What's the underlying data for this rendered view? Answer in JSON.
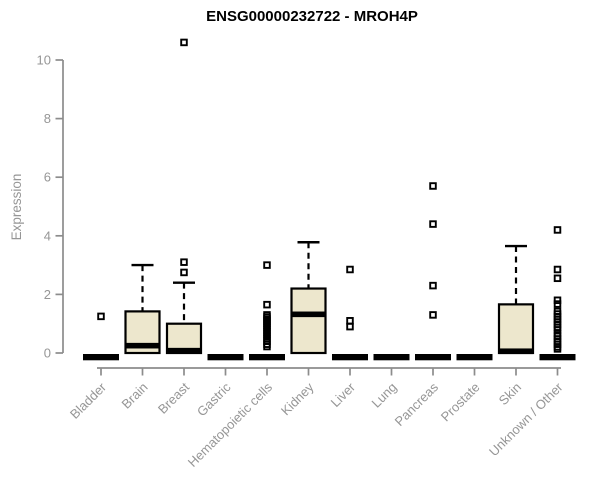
{
  "chart_data": {
    "type": "boxplot",
    "title": "ENSG00000232722 - MROH4P",
    "xlabel": "",
    "ylabel": "Expression",
    "ylim": [
      0,
      10.7
    ],
    "yticks": [
      0,
      2,
      4,
      6,
      8,
      10
    ],
    "grid": false,
    "legend": "none",
    "colors": {
      "box_fill": "#EDE7CD",
      "box_stroke": "#000000",
      "median": "#000000",
      "whisker": "#000000",
      "outlier_stroke": "#000000",
      "axis": "#8C8C8C",
      "axis_text": "#969696",
      "title": "#000000",
      "background": "#FFFFFF"
    },
    "categories": [
      {
        "label": "Bladder",
        "q1": 0,
        "median": 0,
        "q3": 0,
        "whisker_low": 0,
        "whisker_high": 0,
        "outliers": [
          1.25
        ]
      },
      {
        "label": "Brain",
        "q1": 0,
        "median": 0.25,
        "q3": 1.42,
        "whisker_low": 0,
        "whisker_high": 3.0,
        "outliers": []
      },
      {
        "label": "Breast",
        "q1": 0,
        "median": 0.08,
        "q3": 1.0,
        "whisker_low": 0,
        "whisker_high": 2.4,
        "outliers": [
          2.75,
          3.1,
          10.6
        ]
      },
      {
        "label": "Gastric",
        "q1": 0,
        "median": 0,
        "q3": 0,
        "whisker_low": 0,
        "whisker_high": 0,
        "outliers": []
      },
      {
        "label": "Hematopoietic cells",
        "q1": 0,
        "median": 0,
        "q3": 0,
        "whisker_low": 0,
        "whisker_high": 0,
        "outliers": [
          3.0,
          1.65,
          1.3,
          1.23,
          1.16,
          1.09,
          1.02,
          0.95,
          0.88,
          0.8,
          0.72,
          0.64,
          0.56,
          0.48,
          0.4,
          0.3,
          0.22
        ]
      },
      {
        "label": "Kidney",
        "q1": 0,
        "median": 1.32,
        "q3": 2.2,
        "whisker_low": 0,
        "whisker_high": 3.78,
        "outliers": []
      },
      {
        "label": "Liver",
        "q1": 0,
        "median": 0,
        "q3": 0,
        "whisker_low": 0,
        "whisker_high": 0,
        "outliers": [
          2.85,
          1.1,
          0.9
        ]
      },
      {
        "label": "Lung",
        "q1": 0,
        "median": 0,
        "q3": 0,
        "whisker_low": 0,
        "whisker_high": 0,
        "outliers": []
      },
      {
        "label": "Pancreas",
        "q1": 0,
        "median": 0,
        "q3": 0,
        "whisker_low": 0,
        "whisker_high": 0,
        "outliers": [
          5.7,
          4.4,
          2.3,
          1.3
        ]
      },
      {
        "label": "Prostate",
        "q1": 0,
        "median": 0,
        "q3": 0,
        "whisker_low": 0,
        "whisker_high": 0,
        "outliers": []
      },
      {
        "label": "Skin",
        "q1": 0,
        "median": 0.06,
        "q3": 1.66,
        "whisker_low": 0,
        "whisker_high": 3.65,
        "outliers": []
      },
      {
        "label": "Unknown / Other",
        "q1": 0,
        "median": 0,
        "q3": 0,
        "whisker_low": 0,
        "whisker_high": 0,
        "outliers": [
          4.2,
          2.85,
          2.55,
          1.8,
          1.67,
          1.42,
          1.33,
          1.24,
          1.15,
          1.06,
          0.97,
          0.88,
          0.79,
          0.66,
          0.57,
          0.48,
          0.39,
          0.3,
          0.21,
          0.14
        ]
      }
    ]
  }
}
